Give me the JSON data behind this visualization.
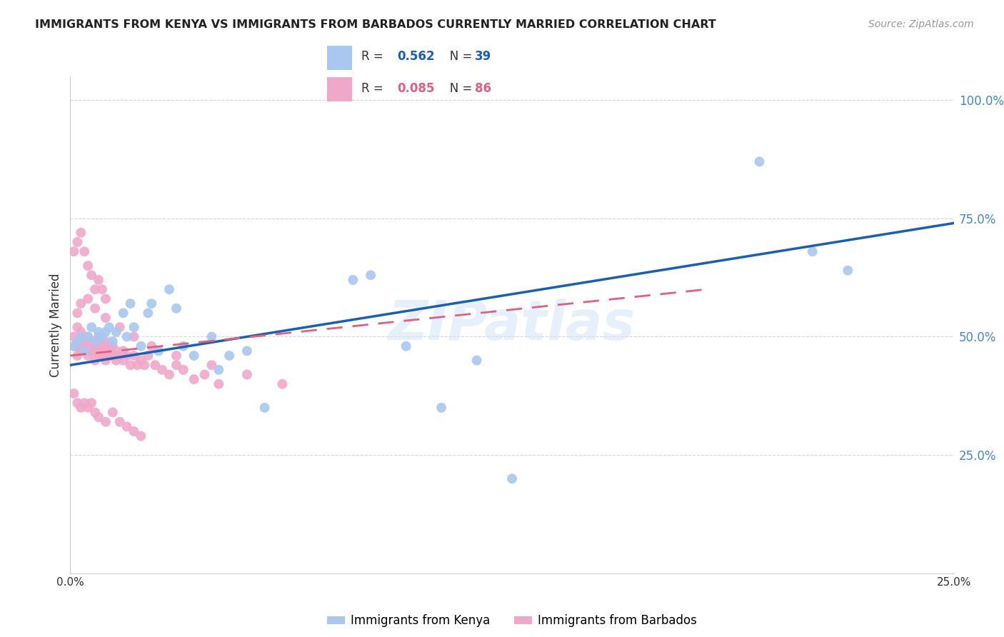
{
  "title": "IMMIGRANTS FROM KENYA VS IMMIGRANTS FROM BARBADOS CURRENTLY MARRIED CORRELATION CHART",
  "source": "Source: ZipAtlas.com",
  "ylabel": "Currently Married",
  "xlim": [
    0.0,
    0.25
  ],
  "ylim": [
    0.0,
    1.05
  ],
  "yticks": [
    0.0,
    0.25,
    0.5,
    0.75,
    1.0
  ],
  "ytick_labels": [
    "",
    "25.0%",
    "50.0%",
    "75.0%",
    "100.0%"
  ],
  "xticks": [
    0.0,
    0.05,
    0.1,
    0.15,
    0.2,
    0.25
  ],
  "xtick_labels": [
    "0.0%",
    "",
    "",
    "",
    "",
    "25.0%"
  ],
  "kenya_R": 0.562,
  "kenya_N": 39,
  "barbados_R": 0.085,
  "barbados_N": 86,
  "kenya_color": "#a8c8f0",
  "barbados_color": "#f0a8c8",
  "kenya_line_color": "#1a5fb4",
  "barbados_line_color": "#e06080",
  "background_color": "#ffffff",
  "grid_color": "#cccccc",
  "kenya_x": [
    0.001,
    0.002,
    0.003,
    0.004,
    0.005,
    0.006,
    0.007,
    0.008,
    0.009,
    0.01,
    0.011,
    0.012,
    0.013,
    0.015,
    0.016,
    0.017,
    0.018,
    0.02,
    0.022,
    0.023,
    0.025,
    0.028,
    0.03,
    0.032,
    0.035,
    0.04,
    0.042,
    0.045,
    0.05,
    0.055,
    0.08,
    0.085,
    0.095,
    0.105,
    0.115,
    0.125,
    0.195,
    0.21,
    0.22
  ],
  "kenya_y": [
    0.48,
    0.49,
    0.5,
    0.47,
    0.5,
    0.52,
    0.49,
    0.51,
    0.5,
    0.51,
    0.52,
    0.49,
    0.51,
    0.55,
    0.5,
    0.57,
    0.52,
    0.48,
    0.55,
    0.57,
    0.47,
    0.6,
    0.56,
    0.48,
    0.46,
    0.5,
    0.43,
    0.46,
    0.47,
    0.35,
    0.62,
    0.63,
    0.48,
    0.35,
    0.45,
    0.2,
    0.87,
    0.68,
    0.64
  ],
  "barbados_x": [
    0.001,
    0.001,
    0.002,
    0.002,
    0.002,
    0.003,
    0.003,
    0.003,
    0.004,
    0.004,
    0.005,
    0.005,
    0.005,
    0.006,
    0.006,
    0.007,
    0.007,
    0.007,
    0.008,
    0.008,
    0.008,
    0.009,
    0.009,
    0.01,
    0.01,
    0.01,
    0.011,
    0.011,
    0.012,
    0.012,
    0.013,
    0.013,
    0.014,
    0.015,
    0.015,
    0.016,
    0.017,
    0.018,
    0.019,
    0.02,
    0.021,
    0.022,
    0.024,
    0.026,
    0.028,
    0.03,
    0.032,
    0.035,
    0.038,
    0.042,
    0.001,
    0.002,
    0.003,
    0.004,
    0.005,
    0.006,
    0.007,
    0.008,
    0.009,
    0.01,
    0.001,
    0.002,
    0.003,
    0.004,
    0.005,
    0.006,
    0.007,
    0.008,
    0.01,
    0.012,
    0.014,
    0.016,
    0.018,
    0.02,
    0.002,
    0.003,
    0.005,
    0.007,
    0.01,
    0.014,
    0.018,
    0.023,
    0.03,
    0.04,
    0.05,
    0.06
  ],
  "barbados_y": [
    0.48,
    0.5,
    0.46,
    0.48,
    0.52,
    0.47,
    0.49,
    0.51,
    0.48,
    0.5,
    0.46,
    0.48,
    0.5,
    0.47,
    0.49,
    0.45,
    0.47,
    0.49,
    0.46,
    0.48,
    0.5,
    0.46,
    0.48,
    0.45,
    0.47,
    0.49,
    0.46,
    0.48,
    0.46,
    0.48,
    0.47,
    0.45,
    0.46,
    0.45,
    0.47,
    0.46,
    0.44,
    0.46,
    0.44,
    0.45,
    0.44,
    0.46,
    0.44,
    0.43,
    0.42,
    0.44,
    0.43,
    0.41,
    0.42,
    0.4,
    0.68,
    0.7,
    0.72,
    0.68,
    0.65,
    0.63,
    0.6,
    0.62,
    0.6,
    0.58,
    0.38,
    0.36,
    0.35,
    0.36,
    0.35,
    0.36,
    0.34,
    0.33,
    0.32,
    0.34,
    0.32,
    0.31,
    0.3,
    0.29,
    0.55,
    0.57,
    0.58,
    0.56,
    0.54,
    0.52,
    0.5,
    0.48,
    0.46,
    0.44,
    0.42,
    0.4
  ],
  "legend_title_R_label": "R = ",
  "legend_kenya_R": "0.562",
  "legend_kenya_N": "39",
  "legend_barbados_R": "0.085",
  "legend_barbados_N": "86",
  "watermark": "ZIPatlas",
  "bottom_legend_kenya": "Immigrants from Kenya",
  "bottom_legend_barbados": "Immigrants from Barbados"
}
